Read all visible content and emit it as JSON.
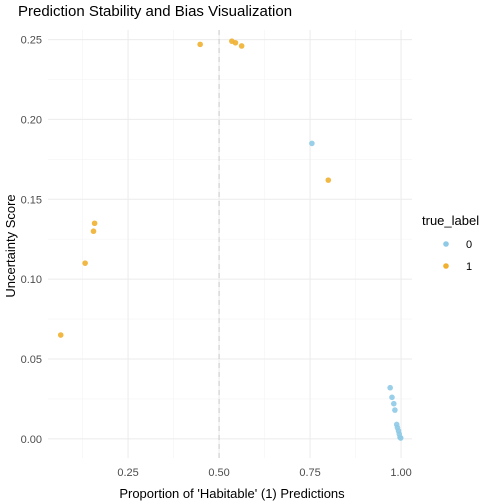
{
  "chart_data": {
    "type": "scatter",
    "title": "Prediction Stability and Bias Visualization",
    "xlabel": "Proportion of 'Habitable' (1) Predictions",
    "ylabel": "Uncertainty Score",
    "xlim": [
      0.03,
      1.03
    ],
    "ylim": [
      -0.012,
      0.256
    ],
    "x_ticks": [
      0.25,
      0.5,
      0.75,
      1.0
    ],
    "x_tick_labels": [
      "0.25",
      "0.50",
      "0.75",
      "1.00"
    ],
    "y_ticks": [
      0.0,
      0.05,
      0.1,
      0.15,
      0.2,
      0.25
    ],
    "y_tick_labels": [
      "0.00",
      "0.05",
      "0.10",
      "0.15",
      "0.20",
      "0.25"
    ],
    "reference_line_x": 0.5,
    "grid": true,
    "legend": {
      "title": "true_label",
      "placement": "right",
      "entries": [
        {
          "label": "0",
          "color": "#8ecae6"
        },
        {
          "label": "1",
          "color": "#f0b030"
        }
      ]
    },
    "series": [
      {
        "name": "0",
        "color": "#8ecae6",
        "points": [
          {
            "x": 0.755,
            "y": 0.185
          },
          {
            "x": 0.97,
            "y": 0.032
          },
          {
            "x": 0.975,
            "y": 0.026
          },
          {
            "x": 0.98,
            "y": 0.022
          },
          {
            "x": 0.983,
            "y": 0.018
          },
          {
            "x": 0.988,
            "y": 0.009
          },
          {
            "x": 0.99,
            "y": 0.007
          },
          {
            "x": 0.993,
            "y": 0.005
          },
          {
            "x": 0.995,
            "y": 0.003
          },
          {
            "x": 0.997,
            "y": 0.001
          },
          {
            "x": 0.999,
            "y": 0.0005
          }
        ]
      },
      {
        "name": "1",
        "color": "#f0b030",
        "points": [
          {
            "x": 0.065,
            "y": 0.065
          },
          {
            "x": 0.132,
            "y": 0.11
          },
          {
            "x": 0.155,
            "y": 0.13
          },
          {
            "x": 0.158,
            "y": 0.135
          },
          {
            "x": 0.448,
            "y": 0.247
          },
          {
            "x": 0.535,
            "y": 0.249
          },
          {
            "x": 0.545,
            "y": 0.248
          },
          {
            "x": 0.562,
            "y": 0.246
          },
          {
            "x": 0.8,
            "y": 0.162
          }
        ]
      }
    ]
  }
}
